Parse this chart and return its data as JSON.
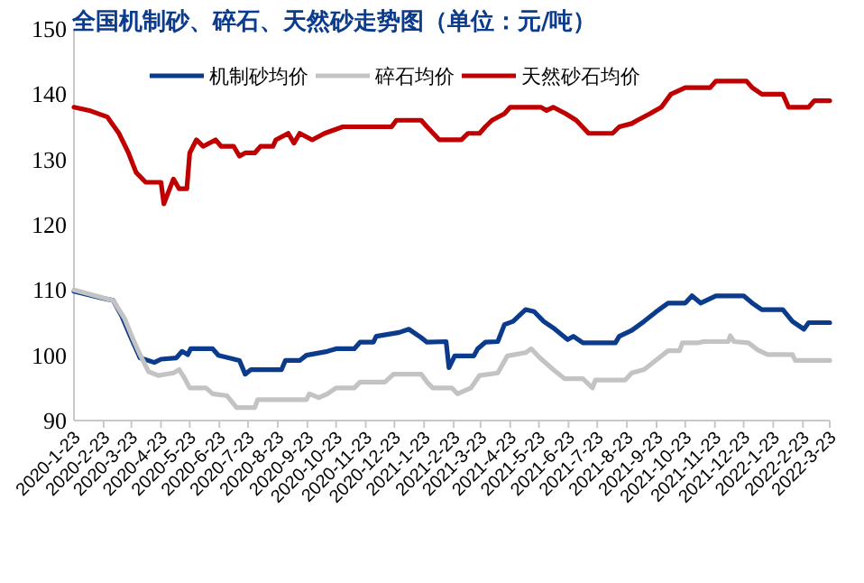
{
  "chart_data": {
    "type": "line",
    "title": "全国机制砂、碎石、天然砂走势图（单位：元/吨）",
    "series": [
      {
        "name": "机制砂均价",
        "color": "#0b3b8c",
        "x": [
          "2020-01-23",
          "2020-02-20",
          "2020-03-04",
          "2020-03-13",
          "2020-03-22",
          "2020-04-01",
          "2020-04-16",
          "2020-04-23",
          "2020-05-09",
          "2020-05-15",
          "2020-05-21",
          "2020-05-24",
          "2020-06-16",
          "2020-06-22",
          "2020-07-14",
          "2020-07-20",
          "2020-07-26",
          "2020-08-27",
          "2020-08-31",
          "2020-09-15",
          "2020-09-22",
          "2020-10-14",
          "2020-10-23",
          "2020-11-11",
          "2020-11-17",
          "2020-12-01",
          "2020-12-04",
          "2020-12-28",
          "2021-01-07",
          "2021-01-20",
          "2021-01-26",
          "2021-02-15",
          "2021-02-18",
          "2021-02-24",
          "2021-03-16",
          "2021-03-20",
          "2021-03-28",
          "2021-04-10",
          "2021-04-17",
          "2021-04-26",
          "2021-05-09",
          "2021-05-18",
          "2021-05-28",
          "2021-06-07",
          "2021-06-22",
          "2021-06-28",
          "2021-07-08",
          "2021-08-11",
          "2021-08-15",
          "2021-08-28",
          "2021-09-10",
          "2021-09-22",
          "2021-10-05",
          "2021-10-23",
          "2021-10-30",
          "2021-11-08",
          "2021-11-24",
          "2021-12-23",
          "2022-01-01",
          "2022-01-11",
          "2022-02-02",
          "2022-02-12",
          "2022-02-24",
          "2022-03-01",
          "2022-03-23"
        ],
        "values": [
          109.8,
          108.8,
          108.4,
          106,
          102.9,
          99.6,
          98.9,
          99.4,
          99.6,
          100.6,
          100.1,
          101,
          101,
          100,
          99.2,
          97.1,
          97.8,
          97.8,
          99.2,
          99.2,
          100,
          100.6,
          101,
          101,
          102,
          102,
          102.9,
          103.5,
          104,
          102.7,
          102,
          102.1,
          98.1,
          99.9,
          99.9,
          101,
          102,
          102.1,
          104.7,
          105.2,
          107,
          106.7,
          105.2,
          104.2,
          102.4,
          102.9,
          101.9,
          101.9,
          102.9,
          103.8,
          105.2,
          106.6,
          108,
          108,
          109.1,
          108,
          109.1,
          109.1,
          108,
          107,
          107,
          105.2,
          104,
          105,
          105
        ]
      },
      {
        "name": "碎石均价",
        "color": "#c3c3c3",
        "x": [
          "2020-01-23",
          "2020-03-04",
          "2020-03-16",
          "2020-03-25",
          "2020-04-01",
          "2020-04-10",
          "2020-04-20",
          "2020-05-06",
          "2020-05-12",
          "2020-05-18",
          "2020-05-23",
          "2020-06-09",
          "2020-06-16",
          "2020-07-01",
          "2020-07-11",
          "2020-07-30",
          "2020-08-02",
          "2020-09-22",
          "2020-09-25",
          "2020-10-05",
          "2020-10-14",
          "2020-10-23",
          "2020-11-11",
          "2020-11-17",
          "2020-12-13",
          "2020-12-22",
          "2021-01-20",
          "2021-01-26",
          "2021-02-01",
          "2021-02-21",
          "2021-02-27",
          "2021-03-13",
          "2021-03-22",
          "2021-04-10",
          "2021-04-20",
          "2021-05-09",
          "2021-05-15",
          "2021-05-24",
          "2021-06-07",
          "2021-06-19",
          "2021-07-08",
          "2021-07-18",
          "2021-07-21",
          "2021-08-21",
          "2021-08-28",
          "2021-09-10",
          "2021-09-22",
          "2021-10-05",
          "2021-10-17",
          "2021-10-20",
          "2021-11-05",
          "2021-11-11",
          "2021-12-07",
          "2021-12-09",
          "2021-12-13",
          "2021-12-28",
          "2022-01-07",
          "2022-01-17",
          "2022-02-12",
          "2022-02-15",
          "2022-03-23"
        ],
        "values": [
          110,
          108.4,
          105.6,
          102.4,
          100.1,
          97.5,
          96.9,
          97.3,
          97.8,
          96.4,
          95,
          95,
          94.1,
          93.8,
          92,
          92,
          93.2,
          93.2,
          94.1,
          93.5,
          94.1,
          95,
          95,
          95.9,
          95.9,
          97.1,
          97.1,
          95.9,
          95,
          95,
          94.1,
          95,
          96.9,
          97.3,
          99.9,
          100.4,
          101,
          99.6,
          97.8,
          96.4,
          96.4,
          95,
          96.2,
          96.2,
          97.3,
          97.8,
          99.2,
          100.7,
          100.7,
          101.9,
          101.9,
          102.1,
          102.1,
          103,
          102.1,
          101.9,
          100.8,
          100.1,
          100.1,
          99.2,
          99.2
        ]
      },
      {
        "name": "天然砂石均价",
        "color": "#c00000",
        "x": [
          "2020-01-23",
          "2020-02-08",
          "2020-02-27",
          "2020-03-10",
          "2020-03-20",
          "2020-03-28",
          "2020-04-07",
          "2020-04-23",
          "2020-04-26",
          "2020-05-06",
          "2020-05-12",
          "2020-05-20",
          "2020-05-23",
          "2020-05-30",
          "2020-06-06",
          "2020-06-19",
          "2020-06-25",
          "2020-07-08",
          "2020-07-14",
          "2020-07-20",
          "2020-07-30",
          "2020-08-05",
          "2020-08-18",
          "2020-08-21",
          "2020-09-03",
          "2020-09-09",
          "2020-09-15",
          "2020-09-28",
          "2020-10-11",
          "2020-10-30",
          "2020-12-01",
          "2020-12-20",
          "2020-12-25",
          "2021-01-20",
          "2021-01-26",
          "2021-02-08",
          "2021-03-03",
          "2021-03-10",
          "2021-03-22",
          "2021-03-28",
          "2021-04-04",
          "2021-04-17",
          "2021-04-23",
          "2021-05-25",
          "2021-05-31",
          "2021-06-07",
          "2021-06-20",
          "2021-07-01",
          "2021-07-14",
          "2021-08-08",
          "2021-08-15",
          "2021-08-28",
          "2021-09-03",
          "2021-09-16",
          "2021-09-28",
          "2021-10-08",
          "2021-10-23",
          "2021-11-18",
          "2021-11-24",
          "2021-12-26",
          "2022-01-01",
          "2022-01-11",
          "2022-02-02",
          "2022-02-08",
          "2022-03-01",
          "2022-03-07",
          "2022-03-23"
        ],
        "values": [
          138,
          137.5,
          136.5,
          134,
          131,
          128,
          126.5,
          126.5,
          123.2,
          127,
          125.5,
          125.5,
          131,
          133,
          132,
          133,
          132,
          132,
          130.5,
          131,
          131,
          132,
          132,
          133,
          134,
          132.5,
          134,
          133,
          134,
          135,
          135,
          135,
          136,
          136,
          135,
          133,
          133,
          134,
          134,
          135,
          136,
          137,
          138,
          138,
          137.5,
          138,
          137,
          136,
          134,
          134,
          135,
          135.5,
          136,
          137,
          138,
          140,
          141,
          141,
          142,
          142,
          141,
          140,
          140,
          138,
          138,
          139,
          139
        ]
      }
    ],
    "xlim": [
      "2020-01-23",
      "2022-03-23"
    ],
    "xticks": [
      {
        "value": "2020-01-23",
        "label": "2020-1-23"
      },
      {
        "value": "2020-02-23",
        "label": "2020-2-23"
      },
      {
        "value": "2020-03-23",
        "label": "2020-3-23"
      },
      {
        "value": "2020-04-23",
        "label": "2020-4-23"
      },
      {
        "value": "2020-05-23",
        "label": "2020-5-23"
      },
      {
        "value": "2020-06-23",
        "label": "2020-6-23"
      },
      {
        "value": "2020-07-23",
        "label": "2020-7-23"
      },
      {
        "value": "2020-08-23",
        "label": "2020-8-23"
      },
      {
        "value": "2020-09-23",
        "label": "2020-9-23"
      },
      {
        "value": "2020-10-23",
        "label": "2020-10-23"
      },
      {
        "value": "2020-11-23",
        "label": "2020-11-23"
      },
      {
        "value": "2020-12-23",
        "label": "2020-12-23"
      },
      {
        "value": "2021-01-23",
        "label": "2021-1-23"
      },
      {
        "value": "2021-02-23",
        "label": "2021-2-23"
      },
      {
        "value": "2021-03-23",
        "label": "2021-3-23"
      },
      {
        "value": "2021-04-23",
        "label": "2021-4-23"
      },
      {
        "value": "2021-05-23",
        "label": "2021-5-23"
      },
      {
        "value": "2021-06-23",
        "label": "2021-6-23"
      },
      {
        "value": "2021-07-23",
        "label": "2021-7-23"
      },
      {
        "value": "2021-08-23",
        "label": "2021-8-23"
      },
      {
        "value": "2021-09-23",
        "label": "2021-9-23"
      },
      {
        "value": "2021-10-23",
        "label": "2021-10-23"
      },
      {
        "value": "2021-11-23",
        "label": "2021-11-23"
      },
      {
        "value": "2021-12-23",
        "label": "2021-12-23"
      },
      {
        "value": "2022-01-23",
        "label": "2022-1-23"
      },
      {
        "value": "2022-02-23",
        "label": "2022-2-23"
      },
      {
        "value": "2022-03-23",
        "label": "2022-3-23"
      }
    ],
    "ylim": [
      90,
      150
    ],
    "yticks": [
      90,
      100,
      110,
      120,
      130,
      140,
      150
    ],
    "legend": "top",
    "line_style": "solid",
    "marker": "none"
  }
}
